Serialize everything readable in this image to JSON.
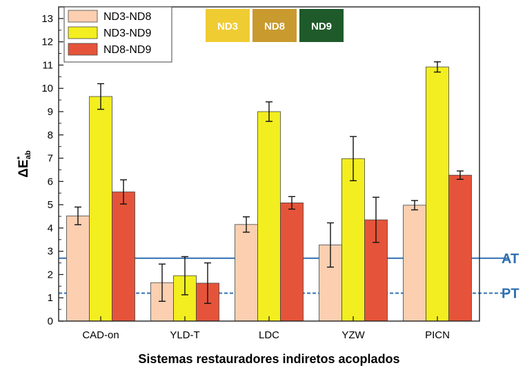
{
  "chart_data": {
    "type": "bar",
    "xlabel": "Sistemas restauradores indiretos acoplados",
    "ylabel_main": "ΔE",
    "ylabel_sup": "*",
    "ylabel_sub": "ab",
    "ylim": [
      0,
      13.5
    ],
    "yticks": [
      0,
      1,
      2,
      3,
      4,
      5,
      6,
      7,
      8,
      9,
      10,
      11,
      12,
      13
    ],
    "categories": [
      "CAD-on",
      "YLD-T",
      "LDC",
      "YZW",
      "PICN"
    ],
    "series": [
      {
        "name": "ND3-ND8",
        "color": "#fbcfb0",
        "values": [
          4.52,
          1.65,
          4.15,
          3.27,
          4.98
        ],
        "errors": [
          0.38,
          0.8,
          0.33,
          0.95,
          0.2
        ]
      },
      {
        "name": "ND3-ND9",
        "color": "#f3ee1f",
        "values": [
          9.65,
          1.95,
          9.0,
          6.98,
          10.92
        ],
        "errors": [
          0.55,
          0.82,
          0.42,
          0.95,
          0.22
        ]
      },
      {
        "name": "ND8-ND9",
        "color": "#e5543a",
        "values": [
          5.55,
          1.63,
          5.08,
          4.35,
          6.27
        ],
        "errors": [
          0.52,
          0.87,
          0.27,
          0.97,
          0.18
        ]
      }
    ],
    "reference_lines": [
      {
        "label": "AT",
        "value": 2.7,
        "style": "solid",
        "color": "#2f6fb0"
      },
      {
        "label": "PT",
        "value": 1.2,
        "style": "dashed",
        "color": "#2f6fb0"
      }
    ],
    "swatches": [
      {
        "label": "ND3",
        "color": "#f0cc33"
      },
      {
        "label": "ND8",
        "color": "#c99a2e"
      },
      {
        "label": "ND9",
        "color": "#1f5a2a"
      }
    ],
    "legend_position": "top-left",
    "grid": false
  }
}
